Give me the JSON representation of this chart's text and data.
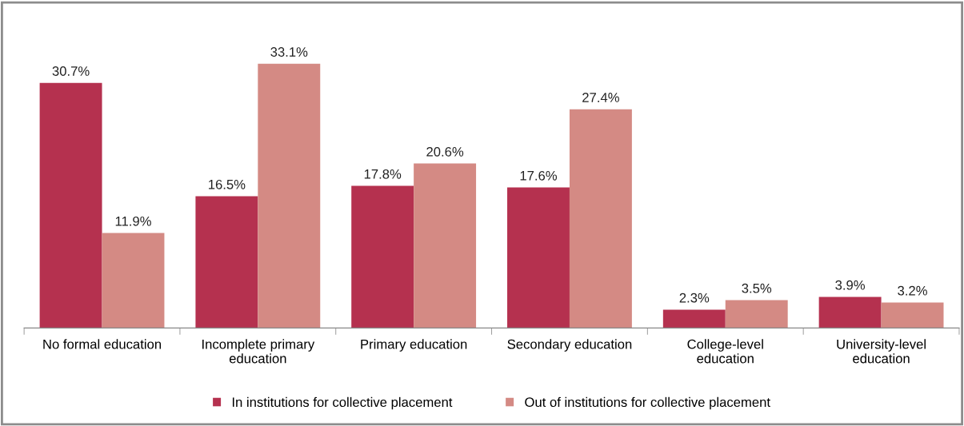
{
  "chart_data": {
    "type": "bar",
    "categories": [
      "No formal education",
      "Incomplete primary\neducation",
      "Primary education",
      "Secondary education",
      "College-level\neducation",
      "University-level\neducation"
    ],
    "series": [
      {
        "name": "In institutions for collective placement",
        "color": "#b5314f",
        "values": [
          30.7,
          16.5,
          17.8,
          17.6,
          2.3,
          3.9
        ],
        "value_labels": [
          "30.7%",
          "16.5%",
          "17.8%",
          "17.6%",
          "2.3%",
          "3.9%"
        ]
      },
      {
        "name": "Out of institutions for collective placement",
        "color": "#d48a84",
        "values": [
          11.9,
          33.1,
          20.6,
          27.4,
          3.5,
          3.2
        ],
        "value_labels": [
          "11.9%",
          "33.1%",
          "20.6%",
          "27.4%",
          "3.5%",
          "3.2%"
        ]
      }
    ],
    "tick_labels": "x",
    "legend": "bottom",
    "grid": false
  }
}
